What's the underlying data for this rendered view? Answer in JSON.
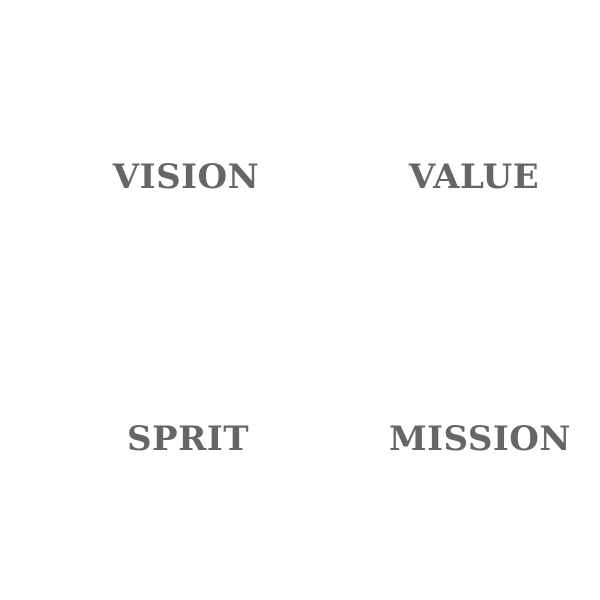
{
  "tiles": [
    {
      "label": "VISION"
    },
    {
      "label": "VALUE"
    },
    {
      "label": "SPRIT"
    },
    {
      "label": "MISSION"
    }
  ],
  "colors": {
    "text": "#666666",
    "background": "#ffffff"
  }
}
